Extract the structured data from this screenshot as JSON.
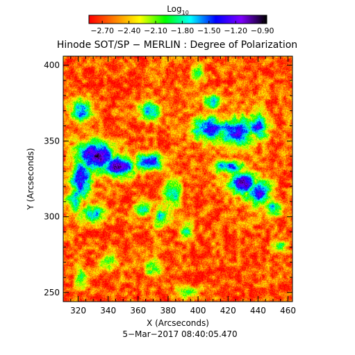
{
  "chart_data": {
    "type": "heatmap",
    "title": "Hinode SOT/SP − MERLIN : Degree of Polarization",
    "xlabel": "X (Arcseconds)",
    "ylabel": "Y (Arcseconds)",
    "timestamp": "5−Mar−2017 08:40:05.470",
    "xlim": [
      310,
      463
    ],
    "ylim": [
      244,
      406
    ],
    "x_ticks": [
      320,
      340,
      360,
      380,
      400,
      420,
      440,
      460
    ],
    "y_ticks": [
      250,
      300,
      350,
      400
    ],
    "x_tick_labels": [
      "320",
      "340",
      "360",
      "380",
      "400",
      "420",
      "440",
      "460"
    ],
    "y_tick_labels": [
      "250",
      "300",
      "350",
      "400"
    ],
    "colorbar": {
      "label_base": "Log",
      "label_sub": "10",
      "range": [
        -2.85,
        -0.85
      ],
      "ticks": [
        -2.7,
        -2.4,
        -2.1,
        -1.8,
        -1.5,
        -1.2,
        -0.9
      ],
      "tick_labels": [
        "−2.70",
        "−2.40",
        "−2.10",
        "−1.80",
        "−1.50",
        "−1.20",
        "−0.90"
      ]
    },
    "colormap": [
      "#ff0000",
      "#ff8000",
      "#ffff00",
      "#00ff00",
      "#00ffff",
      "#0000ff",
      "#8000ff",
      "#000000"
    ],
    "background_level": -2.65,
    "strong_polarization_regions": [
      {
        "x": 332,
        "y": 340,
        "sx": 9,
        "sy": 7,
        "peak": -1.0
      },
      {
        "x": 347,
        "y": 333,
        "sx": 7,
        "sy": 5,
        "peak": -0.95
      },
      {
        "x": 322,
        "y": 325,
        "sx": 5,
        "sy": 9,
        "peak": -1.2
      },
      {
        "x": 318,
        "y": 312,
        "sx": 4,
        "sy": 6,
        "peak": -1.6
      },
      {
        "x": 330,
        "y": 302,
        "sx": 6,
        "sy": 4,
        "peak": -1.6
      },
      {
        "x": 367,
        "y": 336,
        "sx": 7,
        "sy": 4,
        "peak": -1.3
      },
      {
        "x": 322,
        "y": 370,
        "sx": 5,
        "sy": 5,
        "peak": -1.5
      },
      {
        "x": 368,
        "y": 370,
        "sx": 5,
        "sy": 4,
        "peak": -1.6
      },
      {
        "x": 408,
        "y": 358,
        "sx": 9,
        "sy": 6,
        "peak": -1.4
      },
      {
        "x": 425,
        "y": 356,
        "sx": 9,
        "sy": 7,
        "peak": -1.3
      },
      {
        "x": 440,
        "y": 360,
        "sx": 5,
        "sy": 6,
        "peak": -1.4
      },
      {
        "x": 410,
        "y": 376,
        "sx": 4,
        "sy": 4,
        "peak": -1.7
      },
      {
        "x": 400,
        "y": 395,
        "sx": 3,
        "sy": 4,
        "peak": -1.8
      },
      {
        "x": 420,
        "y": 333,
        "sx": 8,
        "sy": 3,
        "peak": -1.5
      },
      {
        "x": 430,
        "y": 322,
        "sx": 7,
        "sy": 5,
        "peak": -1.1
      },
      {
        "x": 440,
        "y": 316,
        "sx": 6,
        "sy": 6,
        "peak": -1.3
      },
      {
        "x": 450,
        "y": 306,
        "sx": 5,
        "sy": 4,
        "peak": -1.7
      },
      {
        "x": 383,
        "y": 315,
        "sx": 4,
        "sy": 6,
        "peak": -1.7
      },
      {
        "x": 363,
        "y": 305,
        "sx": 4,
        "sy": 4,
        "peak": -1.8
      },
      {
        "x": 375,
        "y": 300,
        "sx": 4,
        "sy": 5,
        "peak": -1.8
      },
      {
        "x": 392,
        "y": 290,
        "sx": 3,
        "sy": 4,
        "peak": -1.8
      },
      {
        "x": 370,
        "y": 265,
        "sx": 4,
        "sy": 4,
        "peak": -2.0
      },
      {
        "x": 340,
        "y": 270,
        "sx": 4,
        "sy": 4,
        "peak": -1.9
      },
      {
        "x": 322,
        "y": 260,
        "sx": 3,
        "sy": 4,
        "peak": -1.8
      },
      {
        "x": 392,
        "y": 250,
        "sx": 5,
        "sy": 3,
        "peak": -1.9
      },
      {
        "x": 455,
        "y": 280,
        "sx": 3,
        "sy": 3,
        "peak": -2.0
      }
    ]
  }
}
